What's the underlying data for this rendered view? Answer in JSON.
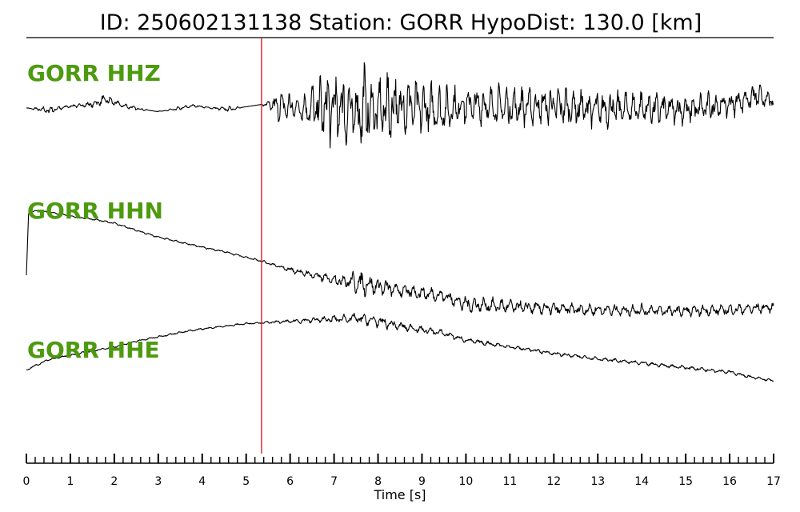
{
  "chart_data": {
    "type": "line",
    "title": "ID: 250602131138   Station: GORR   HypoDist:   130.0 [km]",
    "xlabel": "Time [s]",
    "ylabel": "",
    "xlim": [
      0,
      17
    ],
    "x_ticks": [
      "0",
      "1",
      "2",
      "3",
      "4",
      "5",
      "6",
      "7",
      "8",
      "9",
      "10",
      "11",
      "12",
      "13",
      "14",
      "15",
      "16",
      "17"
    ],
    "minor_tick_step": 0.2,
    "pick_time": 5.35,
    "grid": false,
    "series": [
      {
        "name": "GORR HHZ",
        "x": [
          0,
          0.5,
          1,
          1.5,
          1.8,
          2.2,
          2.6,
          3,
          3.4,
          3.8,
          4.2,
          4.6,
          5,
          5.35,
          5.8,
          6.3,
          6.8,
          7.2,
          7.5,
          7.7,
          7.9,
          8.2,
          8.6,
          9,
          9.5,
          10,
          11,
          12,
          13,
          14,
          15,
          16,
          16.6,
          17
        ],
        "amplitude": [
          0.0,
          0.06,
          0.02,
          0.05,
          0.08,
          0.04,
          0.02,
          -0.01,
          0.03,
          0.02,
          0.01,
          0.04,
          0.0,
          0.0,
          0.25,
          0.22,
          0.55,
          0.65,
          0.55,
          0.65,
          0.45,
          0.55,
          0.5,
          0.4,
          0.35,
          0.3,
          0.3,
          0.3,
          0.28,
          0.25,
          0.22,
          0.2,
          0.2,
          0.1
        ],
        "offset": [
          0.0,
          -0.04,
          0.03,
          0.06,
          0.14,
          0.04,
          -0.02,
          -0.06,
          -0.02,
          0.04,
          0.0,
          -0.02,
          0.02,
          0.06,
          0.02,
          0.0,
          0.0,
          0.0,
          -0.1,
          0.02,
          -0.05,
          0.0,
          0.05,
          0.0,
          -0.04,
          0.05,
          0.02,
          0.04,
          -0.02,
          0.0,
          -0.03,
          0.06,
          0.2,
          0.1
        ],
        "period": 0.17
      },
      {
        "name": "GORR HHN",
        "x": [
          0,
          0.05,
          0.2,
          0.5,
          1,
          1.5,
          2,
          2.5,
          3,
          3.5,
          4,
          4.5,
          5,
          5.35,
          5.8,
          6.3,
          6.8,
          7.2,
          7.6,
          8,
          8.5,
          9,
          9.5,
          10,
          10.5,
          11,
          12,
          13,
          14,
          15,
          16,
          17
        ],
        "amplitude": [
          0,
          0.01,
          0.01,
          0.01,
          0.015,
          0.015,
          0.015,
          0.015,
          0.015,
          0.015,
          0.015,
          0.015,
          0.015,
          0.02,
          0.03,
          0.06,
          0.08,
          0.12,
          0.2,
          0.15,
          0.12,
          0.12,
          0.1,
          0.14,
          0.12,
          0.12,
          0.1,
          0.1,
          0.1,
          0.09,
          0.09,
          0.08
        ],
        "offset": [
          -0.2,
          0.92,
          0.95,
          0.93,
          0.86,
          0.8,
          0.73,
          0.6,
          0.48,
          0.39,
          0.3,
          0.22,
          0.12,
          0.05,
          -0.06,
          -0.16,
          -0.25,
          -0.3,
          -0.34,
          -0.4,
          -0.47,
          -0.52,
          -0.57,
          -0.72,
          -0.74,
          -0.76,
          -0.8,
          -0.82,
          -0.83,
          -0.84,
          -0.82,
          -0.77
        ],
        "period": 0.2
      },
      {
        "name": "GORR HHE",
        "x": [
          0,
          0.5,
          1,
          1.5,
          2,
          2.5,
          3,
          3.5,
          4,
          4.5,
          5,
          5.35,
          6,
          6.5,
          7,
          7.5,
          8,
          8.5,
          9,
          9.5,
          10,
          10.5,
          11,
          11.5,
          12,
          13,
          14,
          15,
          16,
          16.5,
          17
        ],
        "amplitude": [
          0.02,
          0.02,
          0.02,
          0.02,
          0.02,
          0.02,
          0.02,
          0.02,
          0.02,
          0.02,
          0.02,
          0.02,
          0.04,
          0.06,
          0.08,
          0.11,
          0.12,
          0.09,
          0.07,
          0.07,
          0.05,
          0.05,
          0.04,
          0.04,
          0.04,
          0.04,
          0.04,
          0.04,
          0.04,
          0.03,
          0.03
        ],
        "offset": [
          -0.55,
          -0.32,
          -0.22,
          -0.12,
          -0.03,
          0.1,
          0.2,
          0.3,
          0.38,
          0.44,
          0.5,
          0.52,
          0.55,
          0.58,
          0.6,
          0.62,
          0.55,
          0.44,
          0.36,
          0.28,
          0.12,
          0.05,
          -0.03,
          -0.1,
          -0.18,
          -0.3,
          -0.4,
          -0.5,
          -0.6,
          -0.72,
          -0.8
        ],
        "period": 0.22
      }
    ],
    "colors": {
      "trace": "#000000",
      "pick_line": "#e41a1c",
      "label": "#4d9a0f",
      "axis": "#000000"
    }
  }
}
